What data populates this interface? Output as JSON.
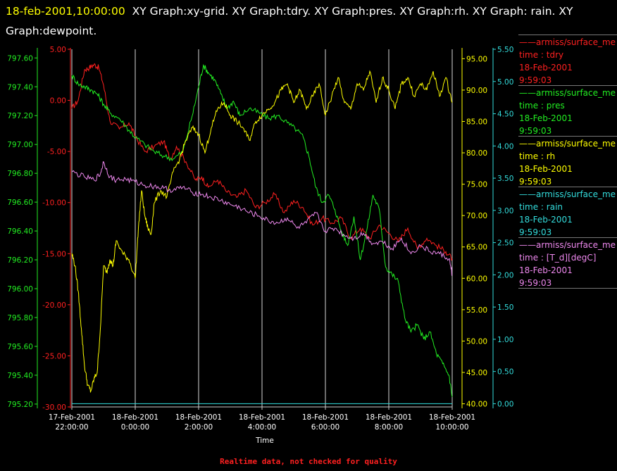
{
  "header": {
    "timestamp": "18-feb-2001,10:00:00",
    "graphs": "XY Graph:xy-grid.  XY Graph:tdry.  XY Graph:pres.  XY Graph:rh.  XY Graph: rain.  XY Graph:dewpoint."
  },
  "footer": {
    "note": "Realtime data, not checked for quality"
  },
  "legend": [
    {
      "source": "armiss/surface_me",
      "field": "time : tdry",
      "date": "18-Feb-2001",
      "time": "9:59:03",
      "color": "#ff2020"
    },
    {
      "source": "armiss/surface_me",
      "field": "time : pres",
      "date": "18-Feb-2001",
      "time": "9:59:03",
      "color": "#22ee22"
    },
    {
      "source": "armiss/surface_me",
      "field": "time : rh",
      "date": "18-Feb-2001",
      "time": "9:59:03",
      "color": "#ffff00"
    },
    {
      "source": "armiss/surface_me",
      "field": "time : rain",
      "date": "18-Feb-2001",
      "time": "9:59:03",
      "color": "#33dddd"
    },
    {
      "source": "armiss/surface_me",
      "field": "time : [T_d][degC]",
      "date": "18-Feb-2001",
      "time": "9:59:03",
      "color": "#ee88ee"
    }
  ],
  "chart_data": {
    "type": "line",
    "xlabel": "Time",
    "x_tick_labels": [
      {
        "x": 0,
        "date": "17-Feb-2001",
        "time": "22:00:00"
      },
      {
        "x": 2,
        "date": "18-Feb-2001",
        "time": "0:00:00"
      },
      {
        "x": 4,
        "date": "18-Feb-2001",
        "time": "2:00:00"
      },
      {
        "x": 6,
        "date": "18-Feb-2001",
        "time": "4:00:00"
      },
      {
        "x": 8,
        "date": "18-Feb-2001",
        "time": "6:00:00"
      },
      {
        "x": 10,
        "date": "18-Feb-2001",
        "time": "8:00:00"
      },
      {
        "x": 12,
        "date": "18-Feb-2001",
        "time": "10:00:00"
      }
    ],
    "x_unit": "hours since 17-Feb-2001 22:00:00",
    "xlim": [
      0,
      12
    ],
    "grid": "vertical",
    "axes": [
      {
        "id": "tdry",
        "side": "left",
        "color": "#ff2020",
        "range": [
          -30,
          5
        ],
        "ticks": [
          5,
          0,
          -5,
          -10,
          -15,
          -20,
          -25,
          -30
        ],
        "decimals": 2
      },
      {
        "id": "pres",
        "side": "left",
        "color": "#22ee22",
        "range": [
          795.18,
          797.66
        ],
        "ticks": [
          797.6,
          797.4,
          797.2,
          797.0,
          796.8,
          796.6,
          796.4,
          796.2,
          796.0,
          795.8,
          795.6,
          795.4,
          795.2
        ],
        "decimals": 2
      },
      {
        "id": "rh",
        "side": "right",
        "color": "#ffff00",
        "range": [
          39.5,
          96.5
        ],
        "ticks": [
          95,
          90,
          85,
          80,
          75,
          70,
          65,
          60,
          55,
          50,
          45,
          40
        ],
        "decimals": 2
      },
      {
        "id": "rain",
        "side": "right",
        "color": "#33dddd",
        "range": [
          -0.05,
          5.5
        ],
        "ticks": [
          5.5,
          5.0,
          4.5,
          4.0,
          3.5,
          3.0,
          2.5,
          2.0,
          1.5,
          1.0,
          0.5,
          0.0
        ],
        "decimals": 2
      }
    ],
    "series": [
      {
        "id": "tdry",
        "axis": "tdry",
        "color": "#ff2020",
        "x": [
          0,
          0.2,
          0.4,
          0.55,
          0.7,
          0.85,
          1.0,
          1.2,
          1.5,
          1.8,
          2.0,
          2.3,
          2.6,
          2.9,
          3.1,
          3.3,
          3.6,
          3.9,
          4.1,
          4.3,
          4.6,
          4.9,
          5.2,
          5.5,
          5.8,
          6.1,
          6.4,
          6.7,
          7.0,
          7.3,
          7.6,
          7.9,
          8.2,
          8.5,
          8.8,
          9.1,
          9.4,
          9.7,
          10.0,
          10.3,
          10.6,
          10.9,
          11.2,
          11.5,
          11.8,
          12.0
        ],
        "values": [
          -0.8,
          0,
          3.0,
          3.2,
          3.5,
          3.2,
          1.5,
          -2.0,
          -2.8,
          -2.2,
          -3.5,
          -5.0,
          -4.5,
          -4.0,
          -5.8,
          -4.5,
          -6.0,
          -7.8,
          -7.5,
          -8.5,
          -7.8,
          -9.0,
          -9.5,
          -8.8,
          -10.5,
          -10.0,
          -9.2,
          -11.0,
          -9.8,
          -10.5,
          -12.2,
          -11.5,
          -12.0,
          -11.5,
          -13.5,
          -12.5,
          -13.5,
          -12.2,
          -13.0,
          -13.8,
          -12.5,
          -14.5,
          -13.5,
          -14.2,
          -14.8,
          -15.5
        ]
      },
      {
        "id": "pres",
        "axis": "pres",
        "color": "#22ee22",
        "x": [
          0,
          0.2,
          0.4,
          0.6,
          0.8,
          1.0,
          1.2,
          1.5,
          1.8,
          2.0,
          2.3,
          2.6,
          2.9,
          3.2,
          3.5,
          3.8,
          4.0,
          4.15,
          4.3,
          4.5,
          4.7,
          4.9,
          5.1,
          5.3,
          5.6,
          5.9,
          6.2,
          6.5,
          6.8,
          7.1,
          7.3,
          7.5,
          7.7,
          7.9,
          8.1,
          8.3,
          8.5,
          8.7,
          8.9,
          9.1,
          9.3,
          9.5,
          9.7,
          9.9,
          10.1,
          10.3,
          10.5,
          10.7,
          10.9,
          11.1,
          11.3,
          11.5,
          11.7,
          11.9,
          12.0
        ],
        "values": [
          797.48,
          797.42,
          797.4,
          797.38,
          797.35,
          797.28,
          797.22,
          797.18,
          797.1,
          797.05,
          797.0,
          796.95,
          796.92,
          796.9,
          796.95,
          797.2,
          797.4,
          797.55,
          797.5,
          797.45,
          797.35,
          797.25,
          797.3,
          797.2,
          797.25,
          797.22,
          797.18,
          797.2,
          797.15,
          797.1,
          797.05,
          796.9,
          796.7,
          796.6,
          796.65,
          796.55,
          796.4,
          796.3,
          796.5,
          796.2,
          796.4,
          796.65,
          796.55,
          796.15,
          796.1,
          796.05,
          795.8,
          795.7,
          795.75,
          795.65,
          795.7,
          795.55,
          795.48,
          795.4,
          795.25
        ]
      },
      {
        "id": "rh",
        "axis": "rh",
        "color": "#ffff00",
        "x": [
          0,
          0.1,
          0.2,
          0.3,
          0.4,
          0.5,
          0.6,
          0.7,
          0.8,
          0.9,
          1.0,
          1.1,
          1.2,
          1.3,
          1.4,
          1.6,
          1.8,
          2.0,
          2.1,
          2.2,
          2.3,
          2.4,
          2.5,
          2.6,
          2.8,
          3.0,
          3.2,
          3.4,
          3.6,
          3.8,
          4.0,
          4.2,
          4.4,
          4.6,
          4.8,
          5.0,
          5.2,
          5.4,
          5.6,
          5.8,
          6.0,
          6.2,
          6.4,
          6.6,
          6.8,
          7.0,
          7.2,
          7.4,
          7.6,
          7.8,
          8.0,
          8.2,
          8.4,
          8.6,
          8.8,
          9.0,
          9.2,
          9.4,
          9.6,
          9.8,
          10.0,
          10.2,
          10.4,
          10.6,
          10.8,
          11.0,
          11.2,
          11.4,
          11.6,
          11.8,
          12.0
        ],
        "values": [
          64,
          62,
          58,
          52,
          46,
          43,
          42,
          44,
          45,
          52,
          62,
          61,
          63,
          62,
          66,
          64,
          63,
          60,
          68,
          74,
          70,
          68,
          67,
          72,
          74,
          73,
          77,
          79,
          82,
          84,
          83,
          80,
          84,
          87,
          88,
          86,
          85,
          84,
          82,
          85,
          86,
          87,
          88,
          90,
          91,
          88,
          90,
          87,
          89,
          91,
          86,
          89,
          92,
          88,
          87,
          91,
          90,
          93,
          88,
          92,
          90,
          87,
          91,
          92,
          89,
          91,
          90,
          93,
          89,
          92,
          88
        ]
      },
      {
        "id": "rain",
        "axis": "rain",
        "color": "#33dddd",
        "x": [
          0,
          12
        ],
        "values": [
          0.0,
          0.0
        ]
      },
      {
        "id": "dewpoint",
        "axis": "tdry",
        "color": "#ee88ee",
        "x": [
          0,
          0.4,
          0.7,
          0.9,
          1.0,
          1.2,
          1.4,
          1.7,
          2.0,
          2.3,
          2.6,
          2.9,
          3.2,
          3.5,
          3.8,
          4.1,
          4.4,
          4.7,
          5.0,
          5.3,
          5.6,
          5.9,
          6.2,
          6.5,
          6.8,
          7.1,
          7.4,
          7.7,
          8.0,
          8.3,
          8.6,
          8.9,
          9.2,
          9.5,
          9.8,
          10.1,
          10.4,
          10.7,
          11.0,
          11.3,
          11.6,
          11.9,
          12.0
        ],
        "values": [
          -7.0,
          -7.5,
          -7.8,
          -7.2,
          -6.0,
          -7.5,
          -7.8,
          -7.7,
          -8.0,
          -8.3,
          -8.4,
          -8.6,
          -8.8,
          -8.5,
          -9.0,
          -9.2,
          -9.5,
          -9.8,
          -10.2,
          -10.5,
          -11.0,
          -11.3,
          -11.8,
          -12.0,
          -11.5,
          -12.5,
          -12.0,
          -11.0,
          -12.8,
          -12.5,
          -13.2,
          -13.5,
          -13.0,
          -14.0,
          -13.8,
          -14.5,
          -13.5,
          -15.0,
          -14.2,
          -14.8,
          -15.0,
          -15.5,
          -17.0
        ]
      }
    ]
  }
}
